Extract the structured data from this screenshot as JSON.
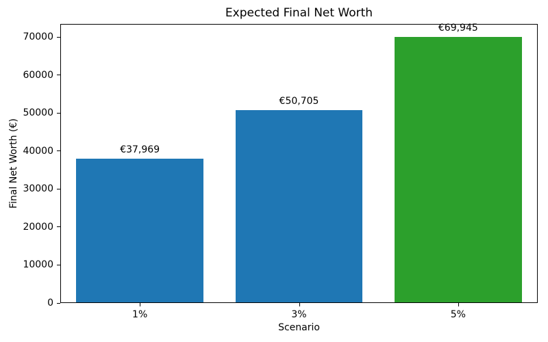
{
  "chart_data": {
    "type": "bar",
    "title": "Expected Final Net Worth",
    "xlabel": "Scenario",
    "ylabel": "Final Net Worth (€)",
    "categories": [
      "1%",
      "3%",
      "5%"
    ],
    "values": [
      37969,
      50705,
      69945
    ],
    "value_labels": [
      "€37,969",
      "€50,705",
      "€69,945"
    ],
    "bar_colors": [
      "#1f77b4",
      "#1f77b4",
      "#2ca02c"
    ],
    "yticks": [
      0,
      10000,
      20000,
      30000,
      40000,
      50000,
      60000,
      70000
    ],
    "ytick_labels": [
      "0",
      "10000",
      "20000",
      "30000",
      "40000",
      "50000",
      "60000",
      "70000"
    ],
    "ylim": [
      0,
      73442
    ],
    "grid": false,
    "legend_position": "none",
    "bar_width_fraction": 0.8
  }
}
